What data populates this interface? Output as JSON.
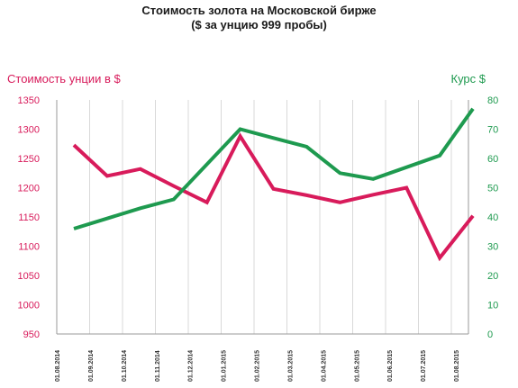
{
  "chart_data": {
    "type": "line",
    "title": "Стоимость золота на Московской бирже",
    "subtitle": "($ за унцию 999 пробы)",
    "ylabel_left": "Стоимость унции в $",
    "ylabel_right": "Курс $",
    "categories": [
      "01.08.2014",
      "01.09.2014",
      "01.10.2014",
      "01.11.2014",
      "01.12.2014",
      "01.01.2015",
      "01.02.2015",
      "01.03.2015",
      "01.04.2015",
      "01.05.2015",
      "01.06.2015",
      "01.07.2015",
      "01.08.2015"
    ],
    "ylim_left": [
      950,
      1350
    ],
    "yticks_left": [
      950,
      1000,
      1050,
      1100,
      1150,
      1200,
      1250,
      1300,
      1350
    ],
    "ylim_right": [
      0,
      80
    ],
    "yticks_right": [
      0,
      10,
      20,
      30,
      40,
      50,
      60,
      70,
      80
    ],
    "series": [
      {
        "axis": "left",
        "color": "#d81b5b",
        "values": [
          1273,
          1220,
          1232,
          1203,
          1175,
          1288,
          1198,
          1187,
          1175,
          1188,
          1200,
          1080,
          1152
        ]
      },
      {
        "axis": "right",
        "color": "#1e9a4f",
        "values": [
          36,
          null,
          43,
          46,
          null,
          70,
          67,
          64,
          55,
          53,
          null,
          61,
          77
        ]
      }
    ],
    "grid": "vertical"
  }
}
